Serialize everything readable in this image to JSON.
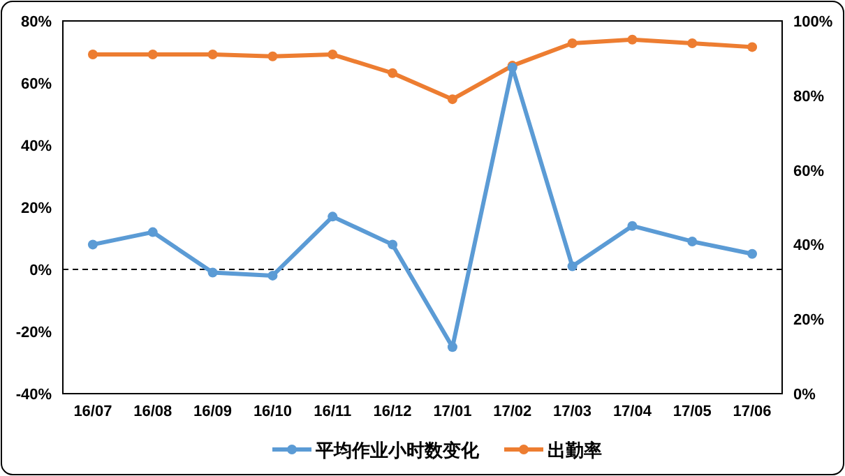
{
  "chart_data": {
    "type": "line",
    "categories": [
      "16/07",
      "16/08",
      "16/09",
      "16/10",
      "16/11",
      "16/12",
      "17/01",
      "17/02",
      "17/03",
      "17/04",
      "17/05",
      "17/06"
    ],
    "series": [
      {
        "name": "平均作业小时数变化",
        "color": "#5b9bd5",
        "values": [
          8,
          12,
          -1,
          -2,
          17,
          8,
          -25,
          65,
          1,
          14,
          9,
          5
        ]
      },
      {
        "name": "出勤率",
        "color": "#ed7d31",
        "axis": "y2",
        "values": [
          91,
          91,
          91,
          90.5,
          91,
          86,
          79,
          88,
          94,
          95,
          94,
          93
        ]
      }
    ],
    "ylim": [
      -40,
      80
    ],
    "yticks": [
      {
        "value": -40,
        "label": "-40%"
      },
      {
        "value": -20,
        "label": "-20%"
      },
      {
        "value": 0,
        "label": "0%"
      },
      {
        "value": 20,
        "label": "20%"
      },
      {
        "value": 40,
        "label": "40%"
      },
      {
        "value": 60,
        "label": "60%"
      },
      {
        "value": 80,
        "label": "80%"
      }
    ],
    "y2lim": [
      0,
      100
    ],
    "y2ticks": [
      {
        "value": 0,
        "label": "0%"
      },
      {
        "value": 20,
        "label": "20%"
      },
      {
        "value": 40,
        "label": "40%"
      },
      {
        "value": 60,
        "label": "60%"
      },
      {
        "value": 80,
        "label": "80%"
      },
      {
        "value": 100,
        "label": "100%"
      }
    ],
    "ref_lines": [
      {
        "axis": "y",
        "value": 0,
        "color": "#000000",
        "line_style": "dashed"
      }
    ],
    "grid": false,
    "legend": "bottom",
    "marker": "circle",
    "line_style": "solid"
  }
}
